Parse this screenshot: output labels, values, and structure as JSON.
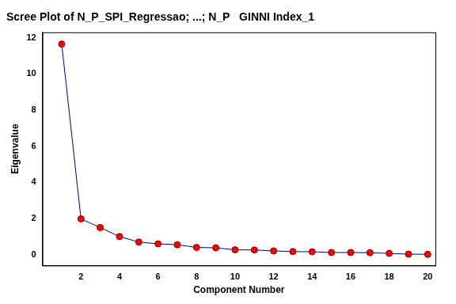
{
  "chart_data": {
    "type": "line",
    "title": "Scree Plot of N_P_SPI_Regressao; ...; N_P   GINNI Index_1",
    "x_label": "Component Number",
    "y_label": "Eigenvalue",
    "x": [
      1,
      2,
      3,
      4,
      5,
      6,
      7,
      8,
      9,
      10,
      11,
      12,
      13,
      14,
      15,
      16,
      17,
      18,
      19,
      20
    ],
    "values": [
      11.65,
      1.98,
      1.5,
      1.0,
      0.7,
      0.6,
      0.55,
      0.4,
      0.38,
      0.27,
      0.26,
      0.21,
      0.17,
      0.16,
      0.12,
      0.12,
      0.11,
      0.07,
      0.03,
      0.02
    ],
    "color": "#000080",
    "marker": "circle",
    "xlim": [
      0,
      20.4
    ],
    "xticks": [
      2,
      4,
      6,
      8,
      10,
      12,
      14,
      16,
      18,
      20
    ],
    "ylim": [
      -0.6,
      12.3
    ],
    "yticks": [
      0,
      2,
      4,
      6,
      8,
      10,
      12
    ],
    "grid": false
  }
}
